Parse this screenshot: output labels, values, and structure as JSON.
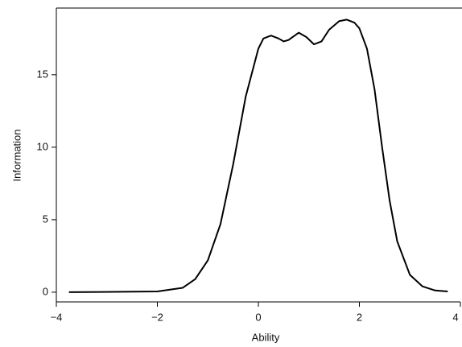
{
  "chart_data": {
    "type": "line",
    "x_label": "Ability",
    "y_label": "Information",
    "x": [
      -3.75,
      -2,
      -1.5,
      -1.25,
      -1,
      -0.75,
      -0.5,
      -0.25,
      0,
      0.1,
      0.25,
      0.4,
      0.5,
      0.6,
      0.8,
      0.95,
      1.1,
      1.25,
      1.4,
      1.6,
      1.75,
      1.9,
      2.0,
      2.15,
      2.3,
      2.45,
      2.6,
      2.75,
      3.0,
      3.25,
      3.5,
      3.75
    ],
    "series": [
      {
        "color": "#000000",
        "values": [
          0,
          0.05,
          0.3,
          0.9,
          2.2,
          4.7,
          8.8,
          13.5,
          16.8,
          17.5,
          17.7,
          17.5,
          17.3,
          17.4,
          17.9,
          17.6,
          17.1,
          17.3,
          18.1,
          18.7,
          18.8,
          18.6,
          18.2,
          16.8,
          14.0,
          10.0,
          6.3,
          3.5,
          1.2,
          0.4,
          0.12,
          0.05
        ]
      }
    ],
    "xlim": [
      -4,
      4
    ],
    "ylim": [
      -0.67,
      19.6
    ],
    "xticks": [
      {
        "value": -4,
        "label": "−4"
      },
      {
        "value": -2,
        "label": "−2"
      },
      0,
      2,
      4
    ],
    "yticks": [
      0,
      5,
      10,
      15
    ],
    "grid": false
  }
}
